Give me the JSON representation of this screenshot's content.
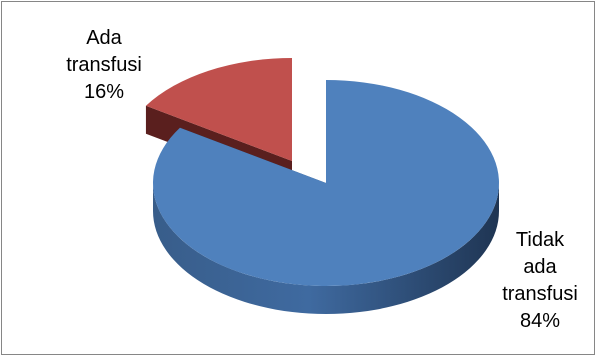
{
  "chart_data": {
    "type": "pie",
    "style": "3d-exploded",
    "categories": [
      "Tidak ada transfusi",
      "Ada transfusi"
    ],
    "values": [
      84,
      16
    ],
    "unit": "%",
    "labels": [
      {
        "lines": [
          "Tidak",
          "ada",
          "transfusi",
          "84%"
        ]
      },
      {
        "lines": [
          "Ada",
          "transfusi",
          "16%"
        ]
      }
    ],
    "title": "",
    "legend": "none",
    "colors": {
      "slice_0": "#4f81bd",
      "slice_1": "#c0504d"
    }
  }
}
